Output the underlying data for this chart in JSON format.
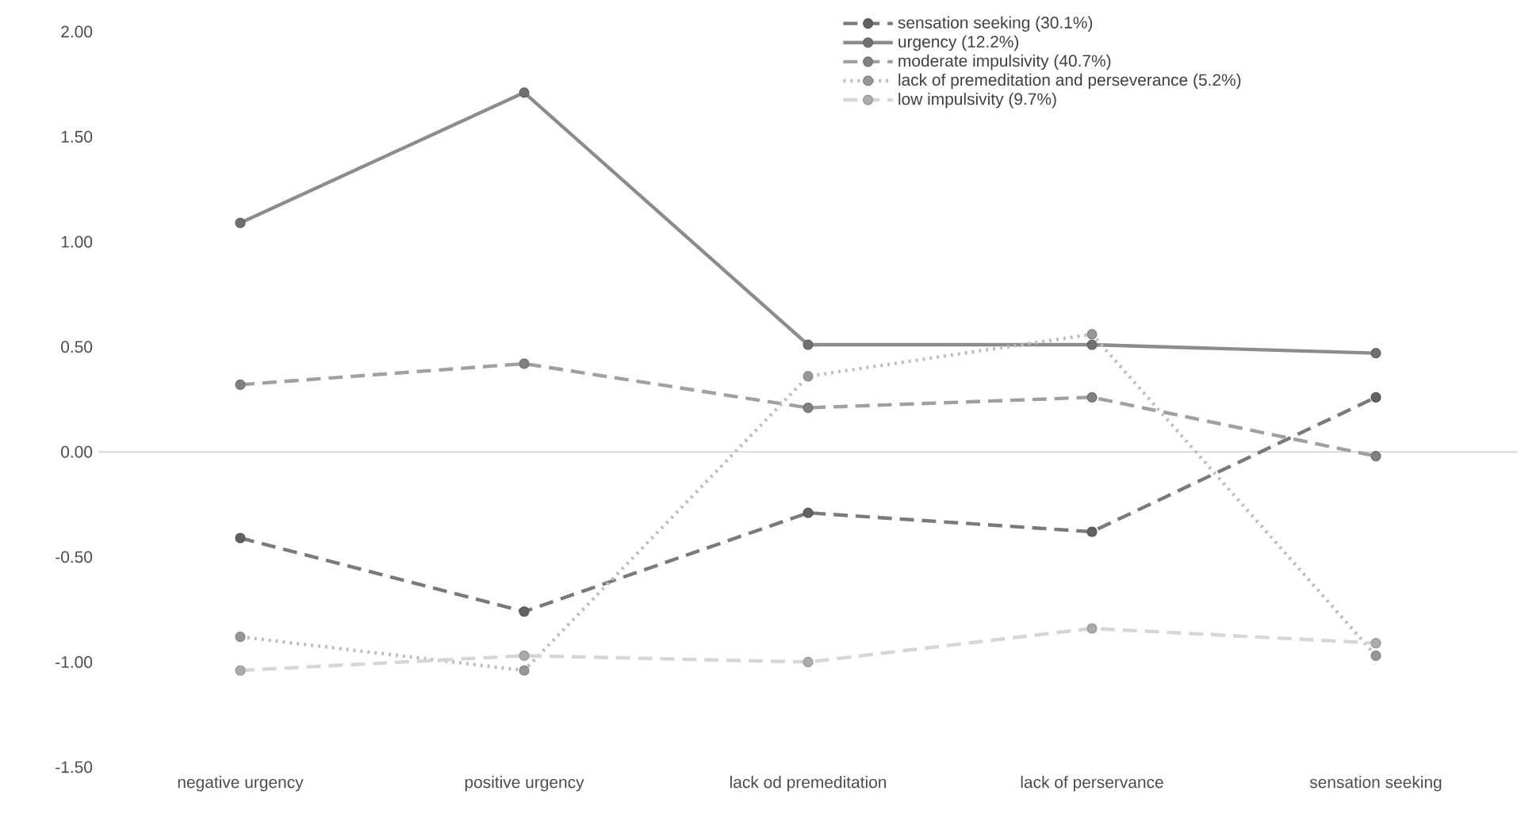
{
  "chart_data": {
    "type": "line",
    "categories": [
      "negative urgency",
      "positive urgency",
      "lack od premeditation",
      "lack of perservance",
      "sensation seeking"
    ],
    "series": [
      {
        "name": "sensation seeking (30.1%)",
        "color": "#7a7a7a",
        "line_style": "dashed",
        "values": [
          -0.41,
          -0.76,
          -0.29,
          -0.38,
          0.26
        ]
      },
      {
        "name": "urgency (12.2%)",
        "color": "#8c8c8c",
        "line_style": "solid",
        "values": [
          1.09,
          1.71,
          0.51,
          0.51,
          0.47
        ]
      },
      {
        "name": "moderate impulsivity (40.7%)",
        "color": "#a0a0a0",
        "line_style": "dashed",
        "values": [
          0.32,
          0.42,
          0.21,
          0.26,
          -0.02
        ]
      },
      {
        "name": "lack of premeditation and perseverance (5.2%)",
        "color": "#bdbdbd",
        "line_style": "dotted",
        "values": [
          -0.88,
          -1.04,
          0.36,
          0.56,
          -0.97
        ]
      },
      {
        "name": "low impulsivity (9.7%)",
        "color": "#d6d6d6",
        "line_style": "dashed",
        "values": [
          -1.04,
          -0.97,
          -1.0,
          -0.84,
          -0.91
        ]
      }
    ],
    "ylim": [
      -1.5,
      2.0
    ],
    "yticks": [
      {
        "value": -1.5,
        "label": "-1.50"
      },
      {
        "value": -1.0,
        "label": "-1.00"
      },
      {
        "value": -0.5,
        "label": "-0.50"
      },
      {
        "value": 0,
        "label": "0.00"
      },
      {
        "value": 0.5,
        "label": "0.50"
      },
      {
        "value": 1.0,
        "label": "1.00"
      },
      {
        "value": 1.5,
        "label": "1.50"
      },
      {
        "value": 2.0,
        "label": "2.00"
      }
    ],
    "marker": "circle",
    "legend": "top right"
  }
}
